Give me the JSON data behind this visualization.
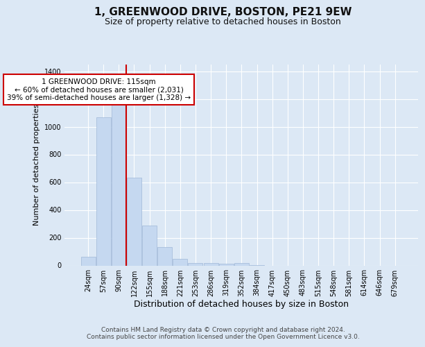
{
  "title": "1, GREENWOOD DRIVE, BOSTON, PE21 9EW",
  "subtitle": "Size of property relative to detached houses in Boston",
  "xlabel": "Distribution of detached houses by size in Boston",
  "ylabel": "Number of detached properties",
  "categories": [
    "24sqm",
    "57sqm",
    "90sqm",
    "122sqm",
    "155sqm",
    "188sqm",
    "221sqm",
    "253sqm",
    "286sqm",
    "319sqm",
    "352sqm",
    "384sqm",
    "417sqm",
    "450sqm",
    "483sqm",
    "515sqm",
    "548sqm",
    "581sqm",
    "614sqm",
    "646sqm",
    "679sqm"
  ],
  "values": [
    65,
    1070,
    1160,
    635,
    290,
    135,
    50,
    20,
    20,
    15,
    20,
    5,
    0,
    0,
    0,
    0,
    0,
    0,
    0,
    0,
    0
  ],
  "bar_color": "#c5d8f0",
  "bar_edge_color": "#a0b8d8",
  "vline_color": "#cc0000",
  "vline_x": 2.5,
  "ylim": [
    0,
    1450
  ],
  "yticks": [
    0,
    200,
    400,
    600,
    800,
    1000,
    1200,
    1400
  ],
  "annotation_text": "1 GREENWOOD DRIVE: 115sqm\n← 60% of detached houses are smaller (2,031)\n39% of semi-detached houses are larger (1,328) →",
  "annotation_box_facecolor": "#ffffff",
  "annotation_box_edgecolor": "#cc0000",
  "footnote": "Contains HM Land Registry data © Crown copyright and database right 2024.\nContains public sector information licensed under the Open Government Licence v3.0.",
  "bg_color": "#dce8f5",
  "plot_bg_color": "#dce8f5",
  "grid_color": "#ffffff",
  "title_fontsize": 11,
  "subtitle_fontsize": 9,
  "xlabel_fontsize": 9,
  "ylabel_fontsize": 8,
  "tick_fontsize": 7,
  "annot_fontsize": 7.5,
  "footnote_fontsize": 6.5
}
